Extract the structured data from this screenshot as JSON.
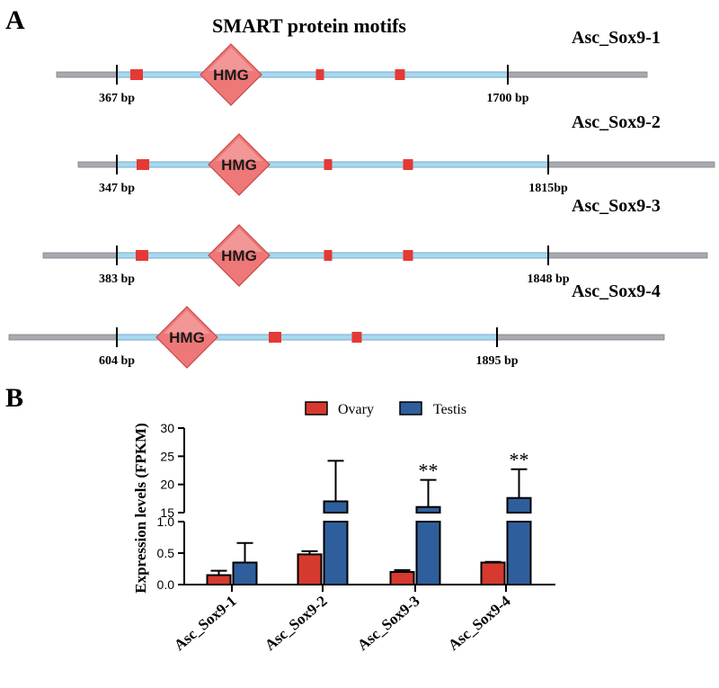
{
  "panel_a": {
    "label": "A",
    "title": "SMART protein motifs",
    "domain_label": "HMG",
    "genes": [
      {
        "name": "Asc_Sox9-1",
        "start_label": "367 bp",
        "end_label": "1700 bp"
      },
      {
        "name": "Asc_Sox9-2",
        "start_label": "347 bp",
        "end_label": "1815bp"
      },
      {
        "name": "Asc_Sox9-3",
        "start_label": "383 bp",
        "end_label": "1848 bp"
      },
      {
        "name": "Asc_Sox9-4",
        "start_label": "604 bp",
        "end_label": "1895 bp"
      }
    ]
  },
  "colors": {
    "ovary": "#d63a2e",
    "testis": "#2e5f9c",
    "transcript": "#a8aab0",
    "cds": "#a7d8ef",
    "motif": "#e53935",
    "hmg_fill": "#ee7777"
  },
  "chart_data": {
    "type": "bar",
    "panel_label": "B",
    "title": "",
    "ylabel": "Expression levels (FPKM)",
    "categories": [
      "Asc_Sox9-1",
      "Asc_Sox9-2",
      "Asc_Sox9-3",
      "Asc_Sox9-4"
    ],
    "series": [
      {
        "name": "Ovary",
        "values": [
          0.15,
          0.48,
          0.2,
          0.35
        ],
        "errors": [
          0.07,
          0.05,
          0.03,
          0.01
        ]
      },
      {
        "name": "Testis",
        "values": [
          0.35,
          17,
          16,
          17.6
        ],
        "errors": [
          0.31,
          7.2,
          4.8,
          5.1
        ]
      }
    ],
    "y_axis": {
      "broken": true,
      "lower_range": [
        0,
        1.0
      ],
      "lower_ticks": [
        "0.0",
        "0.5",
        "1.0"
      ],
      "upper_range": [
        15,
        30
      ],
      "upper_ticks": [
        "15",
        "20",
        "25",
        "30"
      ]
    },
    "annotations": [
      "",
      "",
      "**",
      "**"
    ],
    "legend_position": "top"
  }
}
